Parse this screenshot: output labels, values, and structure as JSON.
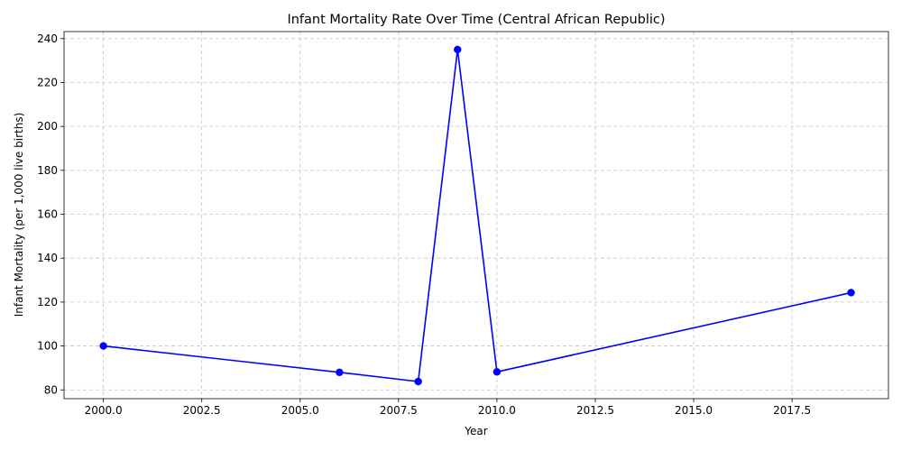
{
  "chart_data": {
    "type": "line",
    "title": "Infant Mortality Rate Over Time (Central African Republic)",
    "xlabel": "Year",
    "ylabel": "Infant Mortality (per 1,000 live births)",
    "x": [
      2000,
      2006,
      2008,
      2009,
      2010,
      2019
    ],
    "series": [
      {
        "values": [
          100,
          88,
          83.8,
          235,
          88.2,
          124.3
        ],
        "color": "#0000ff",
        "marker": "circle"
      }
    ],
    "xlim": [
      1999.0,
      2019.95
    ],
    "ylim": [
      76,
      243.2
    ],
    "xticks": [
      2000,
      2002.5,
      2005,
      2007.5,
      2010,
      2012.5,
      2015,
      2017.5
    ],
    "xtick_labels": [
      "2000.0",
      "2002.5",
      "2005.0",
      "2007.5",
      "2010.0",
      "2012.5",
      "2015.0",
      "2017.5"
    ],
    "yticks": [
      80,
      100,
      120,
      140,
      160,
      180,
      200,
      220,
      240
    ],
    "ytick_labels": [
      "80",
      "100",
      "120",
      "140",
      "160",
      "180",
      "200",
      "220",
      "240"
    ],
    "grid": true,
    "legend": "none"
  }
}
